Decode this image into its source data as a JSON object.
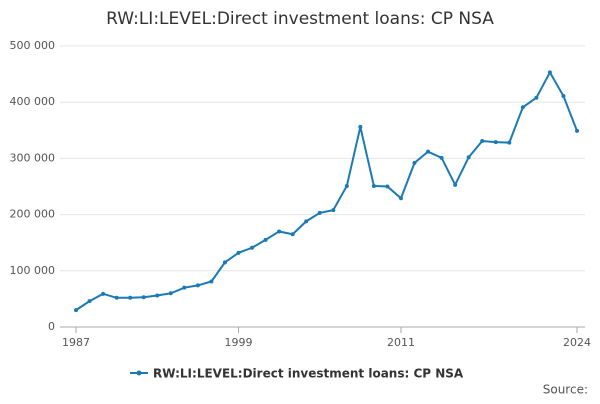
{
  "chart_data": {
    "type": "line",
    "title": "RW:LI:LEVEL:Direct investment loans: CP NSA",
    "x": [
      1987,
      1988,
      1989,
      1990,
      1991,
      1992,
      1993,
      1994,
      1995,
      1996,
      1997,
      1998,
      1999,
      2000,
      2001,
      2002,
      2003,
      2004,
      2005,
      2006,
      2007,
      2008,
      2009,
      2010,
      2011,
      2012,
      2013,
      2014,
      2015,
      2016,
      2017,
      2018,
      2019,
      2020,
      2021,
      2022,
      2023,
      2024
    ],
    "series": [
      {
        "name": "RW:LI:LEVEL:Direct investment loans: CP NSA",
        "color": "#1a7ab5",
        "values": [
          30000,
          46000,
          59000,
          52000,
          52000,
          53000,
          56000,
          60000,
          70000,
          74000,
          81000,
          115000,
          132000,
          141000,
          155000,
          170000,
          165000,
          188000,
          203000,
          208000,
          251000,
          356000,
          251000,
          250000,
          229000,
          292000,
          312000,
          301000,
          253000,
          302000,
          331000,
          329000,
          328000,
          391000,
          408000,
          453000,
          411000,
          349000
        ]
      }
    ],
    "xlim": [
      1987,
      2024
    ],
    "xticks": [
      1987,
      1999,
      2011,
      2024
    ],
    "ylim": [
      0,
      500000
    ],
    "yticks": [
      0,
      {
        "value": 100000,
        "label": "100 000"
      },
      {
        "value": 200000,
        "label": "200 000"
      },
      {
        "value": 300000,
        "label": "300 000"
      },
      {
        "value": 400000,
        "label": "400 000"
      },
      {
        "value": 500000,
        "label": "500 000"
      }
    ],
    "grid": true,
    "source_label": "Source:"
  }
}
